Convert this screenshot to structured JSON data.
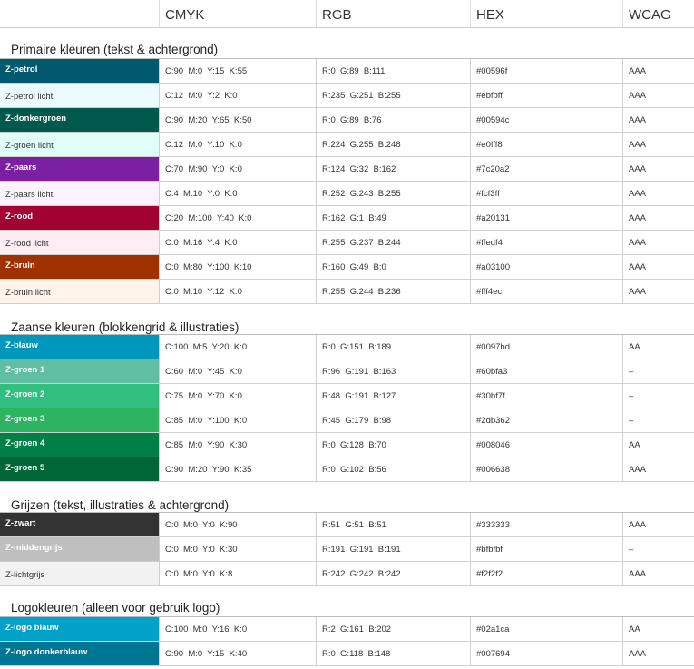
{
  "header": [
    "",
    "CMYK",
    "RGB",
    "HEX",
    "WCAG"
  ],
  "sections": [
    {
      "title": "Primaire kleuren (tekst & achtergrond)",
      "rows": [
        {
          "name": "Z-petrol",
          "cmyk": "C:90  M:0  Y:15  K:55",
          "rgb": "R:0  G:89  B:111",
          "hex": "#00596f",
          "wcag": "AAA",
          "bg": "#00596f",
          "fg": "#ffffff",
          "light": false,
          "h": 27
        },
        {
          "name": "Z-petrol licht",
          "cmyk": "C:12  M:0  Y:2  K:0",
          "rgb": "R:235  G:251  B:255",
          "hex": "#ebfbff",
          "wcag": "AAA",
          "bg": "#ebfbff",
          "fg": "#333333",
          "light": true,
          "h": 27
        },
        {
          "name": "Z-donkergroen",
          "cmyk": "C:90  M:20  Y:65  K:50",
          "rgb": "R:0  G:89  B:76",
          "hex": "#00594c",
          "wcag": "AAA",
          "bg": "#00594c",
          "fg": "#ffffff",
          "light": false,
          "h": 27
        },
        {
          "name": "Z-groen licht",
          "cmyk": "C:12  M:0  Y:10  K:0",
          "rgb": "R:224  G:255  B:248",
          "hex": "#e0fff8",
          "wcag": "AAA",
          "bg": "#e0fff8",
          "fg": "#333333",
          "light": true,
          "h": 27
        },
        {
          "name": "Z-paars",
          "cmyk": "C:70  M:90  Y:0  K:0",
          "rgb": "R:124  G:32  B:162",
          "hex": "#7c20a2",
          "wcag": "AAA",
          "bg": "#7c20a2",
          "fg": "#ffffff",
          "light": false,
          "h": 27
        },
        {
          "name": "Z-paars licht",
          "cmyk": "C:4  M:10  Y:0  K:0",
          "rgb": "R:252  G:243  B:255",
          "hex": "#fcf3ff",
          "wcag": "AAA",
          "bg": "#fcf3ff",
          "fg": "#333333",
          "light": true,
          "h": 27
        },
        {
          "name": "Z-rood",
          "cmyk": "C:20  M:100  Y:40  K:0",
          "rgb": "R:162  G:1  B:49",
          "hex": "#a20131",
          "wcag": "AAA",
          "bg": "#a20131",
          "fg": "#ffffff",
          "light": false,
          "h": 27
        },
        {
          "name": "Z-rood licht",
          "cmyk": "C:0  M:16  Y:4  K:0",
          "rgb": "R:255  G:237  B:244",
          "hex": "#ffedf4",
          "wcag": "AAA",
          "bg": "#ffedf4",
          "fg": "#333333",
          "light": true,
          "h": 27
        },
        {
          "name": "Z-bruin",
          "cmyk": "C:0  M:80  Y:100  K:10",
          "rgb": "R:160  G:49  B:0",
          "hex": "#a03100",
          "wcag": "AAA",
          "bg": "#a03100",
          "fg": "#ffffff",
          "light": false,
          "h": 27
        },
        {
          "name": "Z-bruin licht",
          "cmyk": "C:0  M:10  Y:12  K:0",
          "rgb": "R:255  G:244  B:236",
          "hex": "#fff4ec",
          "wcag": "AAA",
          "bg": "#fff4ec",
          "fg": "#333333",
          "light": true,
          "h": 27
        }
      ]
    },
    {
      "title": "Zaanse kleuren (blokkengrid & illustraties)",
      "rows": [
        {
          "name": "Z-blauw",
          "cmyk": "C:100  M:5  Y:20  K:0",
          "rgb": "R:0  G:151  B:189",
          "hex": "#0097bd",
          "wcag": "AA",
          "bg": "#0097bd",
          "fg": "#ffffff",
          "light": false,
          "h": 27
        },
        {
          "name": "Z-groen 1",
          "cmyk": "C:60  M:0  Y:45  K:0",
          "rgb": "R:96  G:191  B:163",
          "hex": "#60bfa3",
          "wcag": "–",
          "bg": "#60bfa3",
          "fg": "#ffffff",
          "light": false,
          "h": 27
        },
        {
          "name": "Z-groen 2",
          "cmyk": "C:75  M:0  Y:70  K:0",
          "rgb": "R:48  G:191  B:127",
          "hex": "#30bf7f",
          "wcag": "–",
          "bg": "#30bf7f",
          "fg": "#ffffff",
          "light": false,
          "h": 27
        },
        {
          "name": "Z-groen 3",
          "cmyk": "C:85  M:0  Y:100  K:0",
          "rgb": "R:45  G:179  B:98",
          "hex": "#2db362",
          "wcag": "–",
          "bg": "#2db362",
          "fg": "#ffffff",
          "light": false,
          "h": 27
        },
        {
          "name": "Z-groen 4",
          "cmyk": "C:85  M:0  Y:90  K:30",
          "rgb": "R:0  G:128  B:70",
          "hex": "#008046",
          "wcag": "AA",
          "bg": "#008046",
          "fg": "#ffffff",
          "light": false,
          "h": 27
        },
        {
          "name": "Z-groen 5",
          "cmyk": "C:90  M:20  Y:90  K:35",
          "rgb": "R:0  G:102  B:56",
          "hex": "#006638",
          "wcag": "AAA",
          "bg": "#006638",
          "fg": "#ffffff",
          "light": false,
          "h": 27
        }
      ]
    },
    {
      "title": "Grijzen (tekst, illustraties & achtergrond)",
      "rows": [
        {
          "name": "Z-zwart",
          "cmyk": "C:0  M:0  Y:0  K:90",
          "rgb": "R:51  G:51  B:51",
          "hex": "#333333",
          "wcag": "AAA",
          "bg": "#333333",
          "fg": "#ffffff",
          "light": false,
          "h": 27
        },
        {
          "name": "Z-middengrijs",
          "cmyk": "C:0  M:0  Y:0  K:30",
          "rgb": "R:191  G:191  B:191",
          "hex": "#bfbfbf",
          "wcag": "–",
          "bg": "#bfbfbf",
          "fg": "#ffffff",
          "light": false,
          "h": 27
        },
        {
          "name": "Z-lichtgrijs",
          "cmyk": "C:0  M:0  Y:0  K:8",
          "rgb": "R:242  G:242  B:242",
          "hex": "#f2f2f2",
          "wcag": "AAA",
          "bg": "#f2f2f2",
          "fg": "#333333",
          "light": true,
          "h": 27
        }
      ]
    },
    {
      "title": "Logokleuren (alleen voor gebruik logo)",
      "rows": [
        {
          "name": "Z-logo blauw",
          "cmyk": "C:100  M:0  Y:16  K:0",
          "rgb": "R:2  G:161  B:202",
          "hex": "#02a1ca",
          "wcag": "AA",
          "bg": "#02a1ca",
          "fg": "#ffffff",
          "light": false,
          "h": 27
        },
        {
          "name": "Z-logo donkerblauw",
          "cmyk": "C:90  M:0  Y:15  K:40",
          "rgb": "R:0  G:118  B:148",
          "hex": "#007694",
          "wcag": "AAA",
          "bg": "#007694",
          "fg": "#ffffff",
          "light": false,
          "h": 27
        }
      ]
    }
  ]
}
